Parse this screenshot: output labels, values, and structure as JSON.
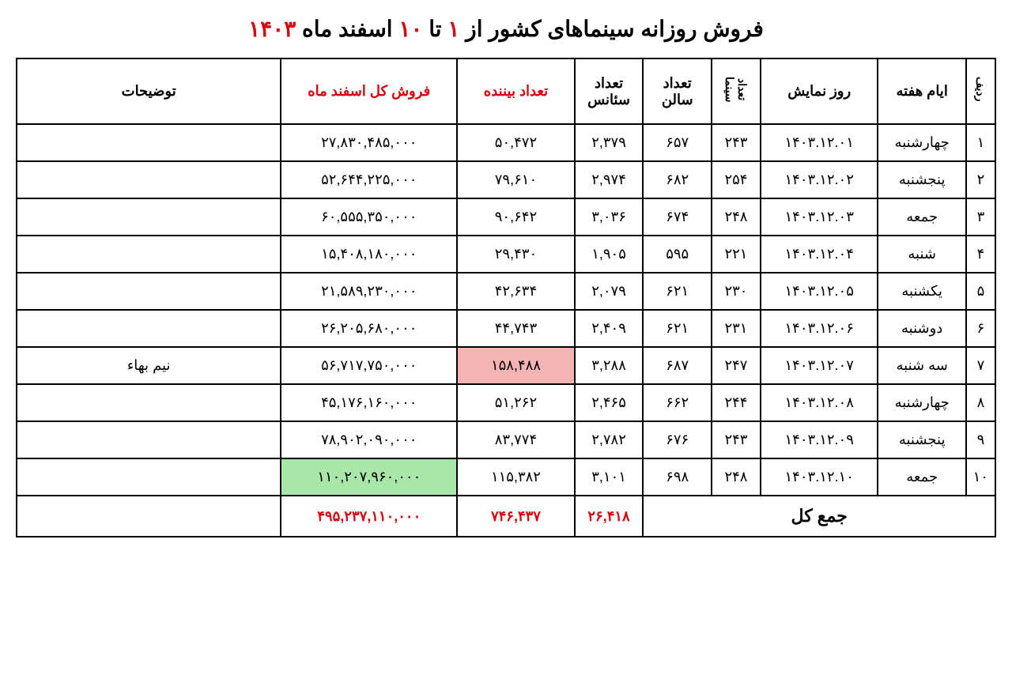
{
  "title": {
    "pre": "فروش روزانه سینماهای کشور از ",
    "range_start": "۱",
    "mid": " تا ",
    "range_end": "۱۰",
    "post": " اسفند ماه ",
    "year": "۱۴۰۳"
  },
  "headers": {
    "row": "ردیف",
    "weekday": "ایام هفته",
    "date": "روز نمایش",
    "cinemas": "تعداد سینما",
    "halls": "تعداد سالن",
    "sessions": "تعداد سئانس",
    "viewers": "تعداد بیننده",
    "sales": "فروش کل اسفند ماه",
    "notes": "توضیحات"
  },
  "rows": [
    {
      "n": "۱",
      "weekday": "چهارشنبه",
      "date": "۱۴۰۳.۱۲.۰۱",
      "cinemas": "۲۴۳",
      "halls": "۶۵۷",
      "sessions": "۲,۳۷۹",
      "viewers": "۵۰,۴۷۲",
      "sales": "۲۷,۸۳۰,۴۸۵,۰۰۰",
      "notes": ""
    },
    {
      "n": "۲",
      "weekday": "پنجشنبه",
      "date": "۱۴۰۳.۱۲.۰۲",
      "cinemas": "۲۵۴",
      "halls": "۶۸۲",
      "sessions": "۲,۹۷۴",
      "viewers": "۷۹,۶۱۰",
      "sales": "۵۲,۶۴۴,۲۲۵,۰۰۰",
      "notes": ""
    },
    {
      "n": "۳",
      "weekday": "جمعه",
      "date": "۱۴۰۳.۱۲.۰۳",
      "cinemas": "۲۴۸",
      "halls": "۶۷۴",
      "sessions": "۳,۰۳۶",
      "viewers": "۹۰,۶۴۲",
      "sales": "۶۰,۵۵۵,۳۵۰,۰۰۰",
      "notes": ""
    },
    {
      "n": "۴",
      "weekday": "شنبه",
      "date": "۱۴۰۳.۱۲.۰۴",
      "cinemas": "۲۲۱",
      "halls": "۵۹۵",
      "sessions": "۱,۹۰۵",
      "viewers": "۲۹,۴۳۰",
      "sales": "۱۵,۴۰۸,۱۸۰,۰۰۰",
      "notes": ""
    },
    {
      "n": "۵",
      "weekday": "یکشنبه",
      "date": "۱۴۰۳.۱۲.۰۵",
      "cinemas": "۲۳۰",
      "halls": "۶۲۱",
      "sessions": "۲,۰۷۹",
      "viewers": "۴۲,۶۳۴",
      "sales": "۲۱,۵۸۹,۲۳۰,۰۰۰",
      "notes": ""
    },
    {
      "n": "۶",
      "weekday": "دوشنبه",
      "date": "۱۴۰۳.۱۲.۰۶",
      "cinemas": "۲۳۱",
      "halls": "۶۲۱",
      "sessions": "۲,۴۰۹",
      "viewers": "۴۴,۷۴۳",
      "sales": "۲۶,۲۰۵,۶۸۰,۰۰۰",
      "notes": ""
    },
    {
      "n": "۷",
      "weekday": "سه شنبه",
      "date": "۱۴۰۳.۱۲.۰۷",
      "cinemas": "۲۴۷",
      "halls": "۶۸۷",
      "sessions": "۳,۲۸۸",
      "viewers": "۱۵۸,۴۸۸",
      "viewers_hl": "red",
      "sales": "۵۶,۷۱۷,۷۵۰,۰۰۰",
      "notes": "نیم بهاء"
    },
    {
      "n": "۸",
      "weekday": "چهارشنبه",
      "date": "۱۴۰۳.۱۲.۰۸",
      "cinemas": "۲۴۴",
      "halls": "۶۶۲",
      "sessions": "۲,۴۶۵",
      "viewers": "۵۱,۲۶۲",
      "sales": "۴۵,۱۷۶,۱۶۰,۰۰۰",
      "notes": ""
    },
    {
      "n": "۹",
      "weekday": "پنجشنبه",
      "date": "۱۴۰۳.۱۲.۰۹",
      "cinemas": "۲۴۳",
      "halls": "۶۷۶",
      "sessions": "۲,۷۸۲",
      "viewers": "۸۳,۷۷۴",
      "sales": "۷۸,۹۰۲,۰۹۰,۰۰۰",
      "notes": ""
    },
    {
      "n": "۱۰",
      "weekday": "جمعه",
      "date": "۱۴۰۳.۱۲.۱۰",
      "cinemas": "۲۴۸",
      "halls": "۶۹۸",
      "sessions": "۳,۱۰۱",
      "viewers": "۱۱۵,۳۸۲",
      "sales": "۱۱۰,۲۰۷,۹۶۰,۰۰۰",
      "sales_hl": "green",
      "notes": ""
    }
  ],
  "total": {
    "label": "جمع کل",
    "sessions": "۲۶,۴۱۸",
    "viewers": "۷۴۶,۴۳۷",
    "sales": "۴۹۵,۲۳۷,۱۱۰,۰۰۰"
  },
  "colors": {
    "red_text": "#d8000c",
    "highlight_red_bg": "#f4b4b4",
    "highlight_green_bg": "#a9e6a9",
    "border": "#000000"
  }
}
